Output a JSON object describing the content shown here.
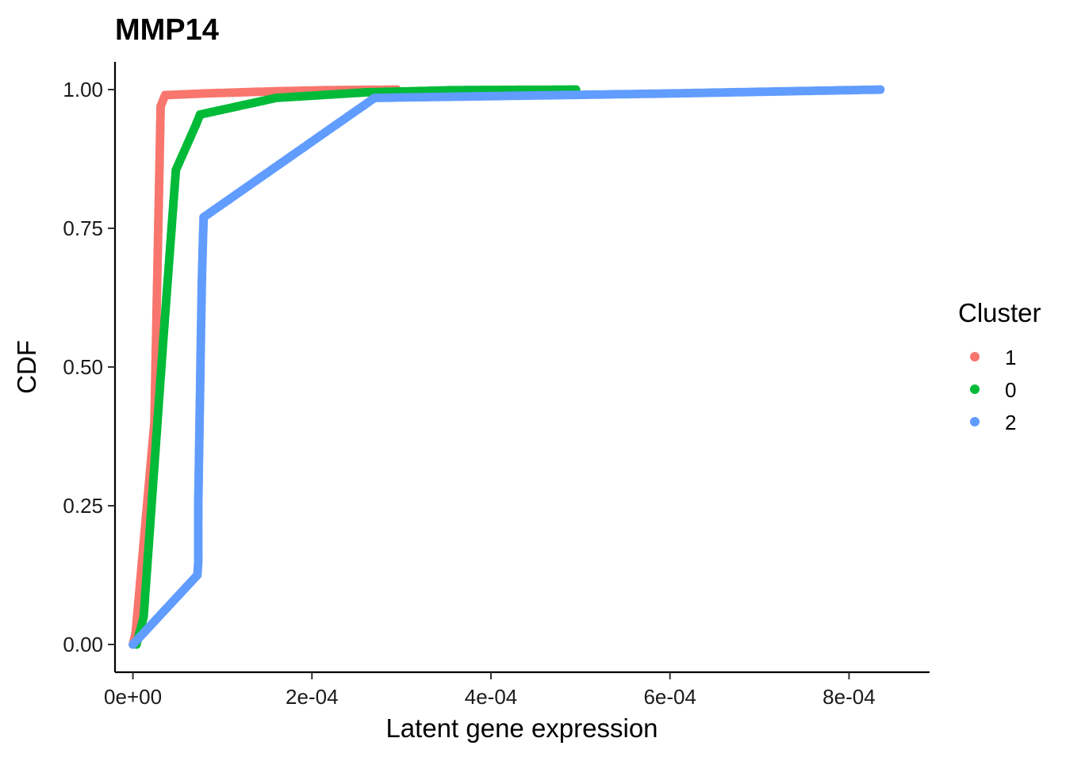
{
  "chart_data": {
    "type": "scatter",
    "title": "MMP14",
    "xlabel": "Latent gene expression",
    "ylabel": "CDF",
    "xlim": [
      -2e-05,
      0.00089
    ],
    "ylim": [
      -0.05,
      1.05
    ],
    "x_ticks": [
      0,
      0.0002,
      0.0004,
      0.0006,
      0.0008
    ],
    "x_tick_labels": [
      "0e+00",
      "2e-04",
      "4e-04",
      "6e-04",
      "8e-04"
    ],
    "y_ticks": [
      0,
      0.25,
      0.5,
      0.75,
      1.0
    ],
    "y_tick_labels": [
      "0.00",
      "0.25",
      "0.50",
      "0.75",
      "1.00"
    ],
    "grid": false,
    "legend": {
      "title": "Cluster",
      "position": "right"
    },
    "series": [
      {
        "name": "1",
        "color": "#F8766D",
        "points": [
          [
            0,
            0
          ],
          [
            3e-06,
            0.02
          ],
          [
            2.4e-05,
            0.4
          ],
          [
            3.1e-05,
            0.97
          ],
          [
            3.6e-05,
            0.99
          ],
          [
            8e-05,
            0.993
          ],
          [
            0.00016,
            0.997
          ],
          [
            0.00022,
            0.999
          ],
          [
            0.000295,
            1.0
          ]
        ]
      },
      {
        "name": "0",
        "color": "#00BA38",
        "points": [
          [
            4e-06,
            0
          ],
          [
            1.2e-05,
            0.05
          ],
          [
            3.4e-05,
            0.55
          ],
          [
            4.8e-05,
            0.855
          ],
          [
            7e-05,
            0.935
          ],
          [
            7.5e-05,
            0.955
          ],
          [
            0.00016,
            0.985
          ],
          [
            0.00026,
            0.995
          ],
          [
            0.00036,
            0.999
          ],
          [
            0.000495,
            1.0
          ]
        ]
      },
      {
        "name": "2",
        "color": "#619CFF",
        "points": [
          [
            0,
            0
          ],
          [
            7.2e-05,
            0.125
          ],
          [
            7.3e-05,
            0.148
          ],
          [
            7.3e-05,
            0.25
          ],
          [
            7.4e-05,
            0.355
          ],
          [
            7.5e-05,
            0.455
          ],
          [
            7.6e-05,
            0.56
          ],
          [
            7.7e-05,
            0.655
          ],
          [
            7.8e-05,
            0.715
          ],
          [
            7.9e-05,
            0.77
          ],
          [
            0.00027,
            0.985
          ],
          [
            0.0006,
            0.993
          ],
          [
            0.000835,
            1.0
          ]
        ]
      }
    ]
  }
}
